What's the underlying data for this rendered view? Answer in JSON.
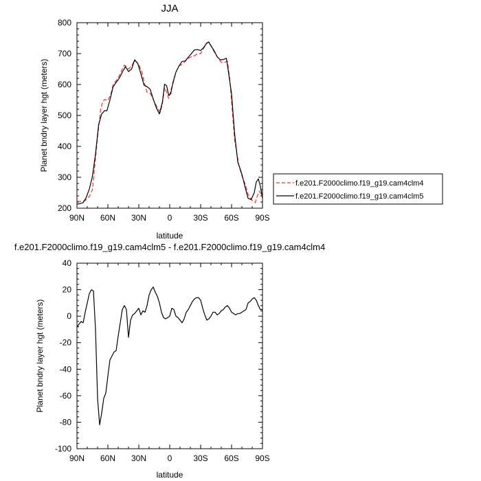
{
  "chart_data": [
    {
      "type": "line",
      "title": "JJA",
      "xlabel": "latitude",
      "ylabel": "Planet bndry layer hgt (meters)",
      "xlim": [
        90,
        -90
      ],
      "ylim": [
        200,
        800
      ],
      "x_ticks": [
        {
          "value": 90,
          "label": "90N"
        },
        {
          "value": 60,
          "label": "60N"
        },
        {
          "value": 30,
          "label": "30N"
        },
        {
          "value": 0,
          "label": "0"
        },
        {
          "value": -30,
          "label": "30S"
        },
        {
          "value": -60,
          "label": "60S"
        },
        {
          "value": -90,
          "label": "90S"
        }
      ],
      "y_ticks": [
        200,
        300,
        400,
        500,
        600,
        700,
        800
      ],
      "legend_position": "right",
      "series": [
        {
          "name": "f.e201.F2000climo.f19_g19.cam4clm4",
          "color": "#e8302a",
          "dash": "dashed",
          "x": [
            90,
            85,
            82,
            78,
            75,
            70,
            67,
            65,
            63,
            60,
            57,
            55,
            52,
            49,
            47,
            44,
            42,
            40,
            37,
            34,
            30,
            27,
            25,
            22,
            19,
            16,
            12,
            9,
            7,
            5,
            3,
            1,
            -1,
            -3,
            -6,
            -9,
            -12,
            -15,
            -18,
            -21,
            -24,
            -27,
            -30,
            -33,
            -36,
            -38,
            -41,
            -44,
            -47,
            -50,
            -53,
            -56,
            -58,
            -60,
            -63,
            -67,
            -70,
            -73,
            -76,
            -80,
            -83,
            -85,
            -87,
            -90
          ],
          "values": [
            222,
            222,
            225,
            238,
            260,
            430,
            520,
            545,
            552,
            548,
            570,
            598,
            612,
            628,
            643,
            663,
            658,
            650,
            660,
            678,
            665,
            640,
            610,
            575,
            572,
            552,
            525,
            510,
            540,
            590,
            575,
            555,
            582,
            600,
            640,
            660,
            665,
            675,
            685,
            690,
            693,
            700,
            700,
            718,
            733,
            738,
            720,
            700,
            685,
            672,
            672,
            675,
            625,
            545,
            420,
            340,
            305,
            280,
            245,
            225,
            218,
            240,
            255,
            240
          ]
        },
        {
          "name": "f.e201.F2000climo.f19_g19.cam4clm5",
          "color": "#000000",
          "dash": "solid",
          "x": [
            90,
            87,
            84,
            81,
            78,
            75,
            72,
            69,
            66,
            63,
            61,
            58,
            55,
            52,
            49,
            46,
            43,
            40,
            37,
            34,
            31,
            28,
            25,
            22,
            19,
            16,
            13,
            10,
            7,
            5,
            3,
            1,
            -1,
            -3,
            -6,
            -9,
            -12,
            -15,
            -18,
            -21,
            -24,
            -27,
            -30,
            -33,
            -36,
            -38,
            -40,
            -43,
            -46,
            -49,
            -52,
            -55,
            -57,
            -60,
            -63,
            -66,
            -70,
            -73,
            -76,
            -79,
            -82,
            -84,
            -86,
            -88,
            -90
          ],
          "values": [
            213,
            215,
            218,
            235,
            262,
            303,
            375,
            470,
            505,
            516,
            515,
            550,
            592,
            607,
            620,
            640,
            658,
            642,
            650,
            680,
            668,
            635,
            598,
            593,
            585,
            553,
            525,
            505,
            545,
            601,
            596,
            565,
            570,
            605,
            640,
            660,
            675,
            676,
            688,
            700,
            712,
            713,
            710,
            720,
            735,
            737,
            725,
            710,
            690,
            680,
            681,
            685,
            640,
            570,
            440,
            350,
            310,
            270,
            232,
            228,
            250,
            285,
            295,
            270,
            232
          ]
        }
      ]
    },
    {
      "type": "line",
      "title": "f.e201.F2000climo.f19_g19.cam4clm5 - f.e201.F2000climo.f19_g19.cam4clm4",
      "xlabel": "latitude",
      "ylabel": "Planet bndry layer hgt (meters)",
      "xlim": [
        90,
        -90
      ],
      "ylim": [
        -100,
        40
      ],
      "x_ticks": [
        {
          "value": 90,
          "label": "90N"
        },
        {
          "value": 60,
          "label": "60N"
        },
        {
          "value": 30,
          "label": "30N"
        },
        {
          "value": 0,
          "label": "0"
        },
        {
          "value": -30,
          "label": "30S"
        },
        {
          "value": -60,
          "label": "60S"
        },
        {
          "value": -90,
          "label": "90S"
        }
      ],
      "y_ticks": [
        -100,
        -80,
        -60,
        -40,
        -20,
        0,
        20,
        40
      ],
      "series": [
        {
          "color": "#000000",
          "dash": "solid",
          "x": [
            90,
            88,
            86,
            84,
            82,
            80,
            78,
            76,
            74,
            72,
            70,
            68,
            66,
            64,
            62,
            60,
            58,
            56,
            54,
            52,
            50,
            48,
            46,
            44,
            42,
            40,
            38,
            36,
            34,
            32,
            30,
            28,
            26,
            24,
            22,
            20,
            18,
            16,
            14,
            12,
            10,
            8,
            6,
            4,
            2,
            0,
            -2,
            -4,
            -6,
            -8,
            -10,
            -12,
            -14,
            -16,
            -18,
            -20,
            -22,
            -24,
            -26,
            -28,
            -30,
            -32,
            -34,
            -36,
            -38,
            -40,
            -42,
            -44,
            -46,
            -48,
            -50,
            -52,
            -54,
            -56,
            -58,
            -60,
            -62,
            -64,
            -66,
            -68,
            -70,
            -72,
            -74,
            -76,
            -78,
            -80,
            -82,
            -84,
            -86,
            -88,
            -90
          ],
          "values": [
            -8,
            -6,
            -4,
            -5,
            3,
            10,
            17,
            20,
            19,
            -10,
            -62,
            -82,
            -73,
            -62,
            -58,
            -45,
            -33,
            -30,
            -27,
            -26,
            -15,
            -5,
            5,
            8,
            5,
            -16,
            -3,
            1,
            2,
            4,
            6,
            1,
            4,
            3,
            8,
            16,
            20,
            22,
            18,
            15,
            10,
            3,
            -1,
            -2,
            -1,
            0,
            6,
            5,
            0,
            -1,
            -3,
            -5,
            -2,
            3,
            5,
            8,
            11,
            13,
            14,
            14,
            12,
            6,
            1,
            -3,
            -2,
            0,
            3,
            3,
            1,
            2,
            4,
            5,
            7,
            8,
            6,
            3,
            2,
            1,
            2,
            2,
            3,
            4,
            5,
            10,
            11,
            13,
            14,
            12,
            8,
            5,
            5
          ]
        }
      ]
    }
  ]
}
